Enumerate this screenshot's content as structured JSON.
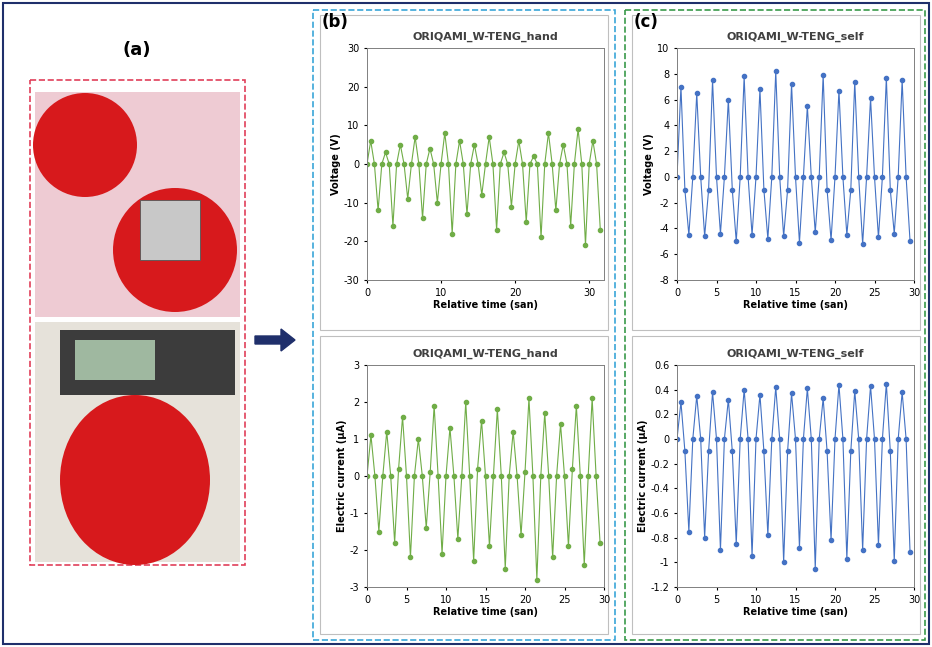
{
  "panel_labels": [
    "(a)",
    "(b)",
    "(c)"
  ],
  "chart_data": [
    {
      "type": "line",
      "title": "ORIQAMI_W-TENG_hand",
      "x_label": "Relative time (san)",
      "y_label": "Voltage (V)",
      "color": "#70ad47",
      "marker": "o",
      "x": [
        0,
        0.5,
        1,
        1.5,
        2,
        2.5,
        3,
        3.5,
        4,
        4.5,
        5,
        5.5,
        6,
        6.5,
        7,
        7.5,
        8,
        8.5,
        9,
        9.5,
        10,
        10.5,
        11,
        11.5,
        12,
        12.5,
        13,
        13.5,
        14,
        14.5,
        15,
        15.5,
        16,
        16.5,
        17,
        17.5,
        18,
        18.5,
        19,
        19.5,
        20,
        20.5,
        21,
        21.5,
        22,
        22.5,
        23,
        23.5,
        24,
        24.5,
        25,
        25.5,
        26,
        26.5,
        27,
        27.5,
        28,
        28.5,
        29,
        29.5,
        30,
        30.5,
        31,
        31.5
      ],
      "values": [
        0,
        6,
        0,
        -12,
        0,
        3,
        0,
        -16,
        0,
        5,
        0,
        -9,
        0,
        7,
        0,
        -14,
        0,
        4,
        0,
        -10,
        0,
        8,
        0,
        -18,
        0,
        6,
        0,
        -13,
        0,
        5,
        0,
        -8,
        0,
        7,
        0,
        -17,
        0,
        3,
        0,
        -11,
        0,
        6,
        0,
        -15,
        0,
        2,
        0,
        -19,
        0,
        8,
        0,
        -12,
        0,
        5,
        0,
        -16,
        0,
        9,
        0,
        -21,
        0,
        6,
        0,
        -17
      ],
      "xlim": [
        0,
        32
      ],
      "xticks": [
        0,
        10,
        20,
        30
      ],
      "ylim": [
        -30,
        30
      ],
      "yticks": [
        -30,
        -20,
        -10,
        0,
        10,
        20,
        30
      ]
    },
    {
      "type": "line",
      "title": "ORIQAMI_W-TENG_hand",
      "x_label": "Relative time (san)",
      "y_label": "Electric current (μA)",
      "color": "#70ad47",
      "marker": "o",
      "x": [
        0,
        0.5,
        1,
        1.5,
        2,
        2.5,
        3,
        3.5,
        4,
        4.5,
        5,
        5.5,
        6,
        6.5,
        7,
        7.5,
        8,
        8.5,
        9,
        9.5,
        10,
        10.5,
        11,
        11.5,
        12,
        12.5,
        13,
        13.5,
        14,
        14.5,
        15,
        15.5,
        16,
        16.5,
        17,
        17.5,
        18,
        18.5,
        19,
        19.5,
        20,
        20.5,
        21,
        21.5,
        22,
        22.5,
        23,
        23.5,
        24,
        24.5,
        25,
        25.5,
        26,
        26.5,
        27,
        27.5,
        28,
        28.5,
        29,
        29.5
      ],
      "values": [
        0,
        1.1,
        0,
        -1.5,
        0,
        1.2,
        0,
        -1.8,
        0.2,
        1.6,
        0,
        -2.2,
        0,
        1.0,
        0,
        -1.4,
        0.1,
        1.9,
        0,
        -2.1,
        0,
        1.3,
        0,
        -1.7,
        0,
        2.0,
        0,
        -2.3,
        0.2,
        1.5,
        0,
        -1.9,
        0,
        1.8,
        0,
        -2.5,
        0,
        1.2,
        0,
        -1.6,
        0.1,
        2.1,
        0,
        -2.8,
        0,
        1.7,
        0,
        -2.2,
        0,
        1.4,
        0,
        -1.9,
        0.2,
        1.9,
        0,
        -2.4,
        0,
        2.1,
        0,
        -1.8
      ],
      "xlim": [
        0,
        30
      ],
      "xticks": [
        0,
        5,
        10,
        15,
        20,
        25,
        30
      ],
      "ylim": [
        -3,
        3
      ],
      "yticks": [
        -3,
        -2,
        -1,
        0,
        1,
        2,
        3
      ]
    },
    {
      "type": "line",
      "title": "ORIQAMI_W-TENG_self",
      "x_label": "Relative time (san)",
      "y_label": "Voltage (V)",
      "color": "#4472c4",
      "marker": "o",
      "x": [
        0,
        0.5,
        1,
        1.5,
        2,
        2.5,
        3,
        3.5,
        4,
        4.5,
        5,
        5.5,
        6,
        6.5,
        7,
        7.5,
        8,
        8.5,
        9,
        9.5,
        10,
        10.5,
        11,
        11.5,
        12,
        12.5,
        13,
        13.5,
        14,
        14.5,
        15,
        15.5,
        16,
        16.5,
        17,
        17.5,
        18,
        18.5,
        19,
        19.5,
        20,
        20.5,
        21,
        21.5,
        22,
        22.5,
        23,
        23.5,
        24,
        24.5,
        25,
        25.5,
        26,
        26.5,
        27,
        27.5,
        28,
        28.5,
        29,
        29.5
      ],
      "values": [
        0,
        7,
        -1,
        -4.5,
        0,
        6.5,
        0,
        -4.6,
        -1,
        7.5,
        0,
        -4.4,
        0,
        6,
        -1,
        -5,
        0,
        7.8,
        0,
        -4.5,
        0,
        6.8,
        -1,
        -4.8,
        0,
        8.2,
        0,
        -4.6,
        -1,
        7.2,
        0,
        -5.1,
        0,
        5.5,
        0,
        -4.3,
        0,
        7.9,
        -1,
        -4.9,
        0,
        6.7,
        0,
        -4.5,
        -1,
        7.4,
        0,
        -5.2,
        0,
        6.1,
        0,
        -4.7,
        0,
        7.7,
        -1,
        -4.4,
        0,
        7.5,
        0,
        -5
      ],
      "xlim": [
        0,
        30
      ],
      "xticks": [
        0,
        5,
        10,
        15,
        20,
        25,
        30
      ],
      "ylim": [
        -8,
        10
      ],
      "yticks": [
        -8,
        -6,
        -4,
        -2,
        0,
        2,
        4,
        6,
        8,
        10
      ]
    },
    {
      "type": "line",
      "title": "ORIQAMI_W-TENG_self",
      "x_label": "Relative time (san)",
      "y_label": "Electric current (μA)",
      "color": "#4472c4",
      "marker": "o",
      "x": [
        0,
        0.5,
        1,
        1.5,
        2,
        2.5,
        3,
        3.5,
        4,
        4.5,
        5,
        5.5,
        6,
        6.5,
        7,
        7.5,
        8,
        8.5,
        9,
        9.5,
        10,
        10.5,
        11,
        11.5,
        12,
        12.5,
        13,
        13.5,
        14,
        14.5,
        15,
        15.5,
        16,
        16.5,
        17,
        17.5,
        18,
        18.5,
        19,
        19.5,
        20,
        20.5,
        21,
        21.5,
        22,
        22.5,
        23,
        23.5,
        24,
        24.5,
        25,
        25.5,
        26,
        26.5,
        27,
        27.5,
        28,
        28.5,
        29,
        29.5
      ],
      "values": [
        0,
        0.3,
        -0.1,
        -0.75,
        0,
        0.35,
        0,
        -0.8,
        -0.1,
        0.38,
        0,
        -0.9,
        0,
        0.32,
        -0.1,
        -0.85,
        0,
        0.4,
        0,
        -0.95,
        0,
        0.36,
        -0.1,
        -0.78,
        0,
        0.42,
        0,
        -1.0,
        -0.1,
        0.37,
        0,
        -0.88,
        0,
        0.41,
        0,
        -1.05,
        0,
        0.33,
        -0.1,
        -0.82,
        0,
        0.44,
        0,
        -0.97,
        -0.1,
        0.39,
        0,
        -0.9,
        0,
        0.43,
        0,
        -0.86,
        0,
        0.45,
        -0.1,
        -0.99,
        0,
        0.38,
        0,
        -0.92
      ],
      "xlim": [
        0,
        30
      ],
      "xticks": [
        0,
        5,
        10,
        15,
        20,
        25,
        30
      ],
      "ylim": [
        -1.2,
        0.6
      ],
      "yticks": [
        -1.2,
        -1,
        -0.8,
        -0.6,
        -0.4,
        -0.2,
        0,
        0.2,
        0.4,
        0.6
      ]
    }
  ]
}
